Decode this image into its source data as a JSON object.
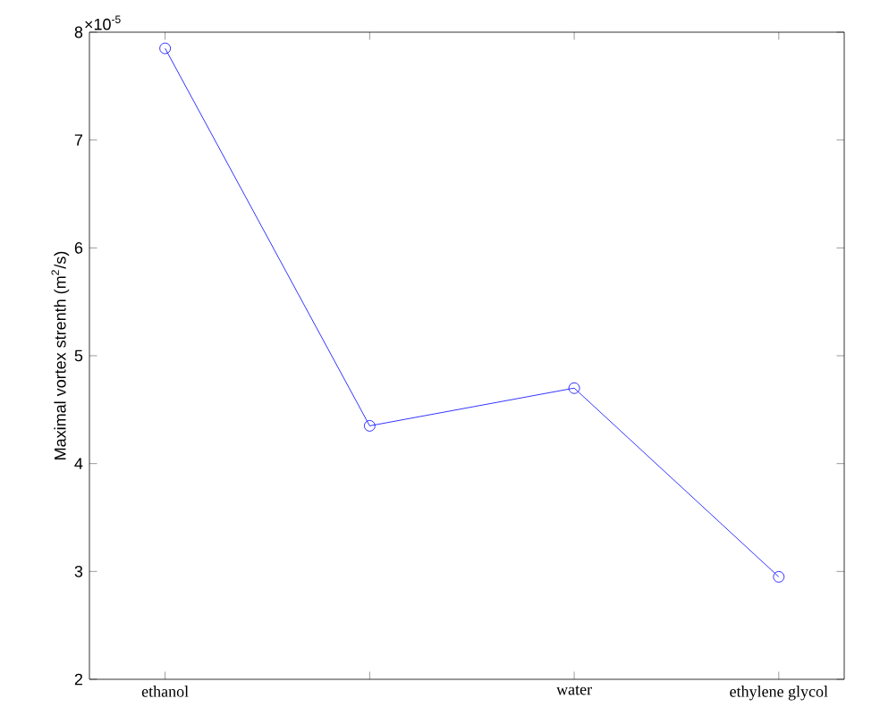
{
  "chart_data": {
    "type": "line",
    "ylabel": "Maximal vortex strenth (m$^{2}$/s)",
    "categories": [
      "ethanol",
      null,
      "water",
      "ethylene glycol"
    ],
    "series": [
      {
        "color": "#0000ff",
        "values": [
          7.85,
          4.35,
          4.7,
          2.95
        ]
      }
    ],
    "ylim": [
      2,
      8
    ],
    "yticks": [
      2,
      3,
      4,
      5,
      6,
      7,
      8
    ],
    "marker": "circle",
    "line_style": "solid",
    "grid": false,
    "annotations": [
      "×10$^{-5}$"
    ]
  }
}
